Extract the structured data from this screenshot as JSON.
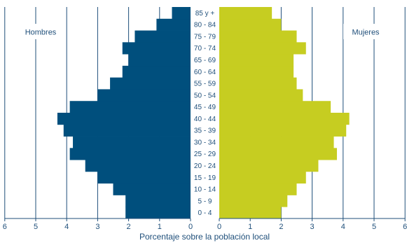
{
  "chart_data": {
    "type": "bar",
    "subtype": "population-pyramid",
    "title": "",
    "xlabel": "Porcentaje sobre la población local",
    "ylabel": "",
    "categories": [
      "0 - 4",
      "5 - 9",
      "10 - 14",
      "15 - 19",
      "20 - 24",
      "25 - 29",
      "30 - 34",
      "35 - 39",
      "40 - 44",
      "45 - 49",
      "50 - 54",
      "55 - 59",
      "60 - 64",
      "65 - 69",
      "70 - 74",
      "75 - 79",
      "80 - 84",
      "85 y +"
    ],
    "series": [
      {
        "name": "Hombres",
        "color": "#004f7d",
        "values": [
          2.1,
          2.1,
          2.5,
          3.0,
          3.4,
          3.9,
          3.8,
          4.1,
          4.3,
          3.9,
          3.0,
          2.6,
          2.2,
          2.0,
          2.2,
          1.8,
          1.1,
          0.6
        ]
      },
      {
        "name": "Mujeres",
        "color": "#c6cd21",
        "values": [
          2.0,
          2.2,
          2.5,
          2.8,
          3.2,
          3.8,
          3.7,
          4.1,
          4.2,
          3.6,
          2.7,
          2.5,
          2.4,
          2.4,
          2.8,
          2.5,
          2.0,
          1.7
        ]
      }
    ],
    "xlim": [
      0,
      6
    ],
    "ticks_left": [
      "6",
      "5",
      "4",
      "3",
      "2",
      "1",
      "0"
    ],
    "ticks_right": [
      "0",
      "1",
      "2",
      "3",
      "4",
      "5",
      "6"
    ],
    "grid": true,
    "legend_placement": "top-left and top-right"
  }
}
